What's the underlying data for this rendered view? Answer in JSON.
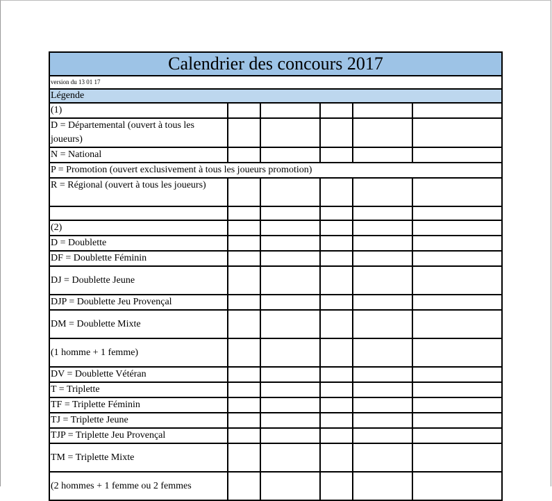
{
  "title": "Calendrier des concours 2017",
  "version": "version du 13 01 17",
  "legend_header": "Légende",
  "rows": [
    {
      "text": "(1)",
      "tall": false,
      "span": false
    },
    {
      "text": "D = Départemental (ouvert à tous les joueurs)",
      "tall": true,
      "span": false
    },
    {
      "text": "N = National",
      "tall": false,
      "span": false
    },
    {
      "text": "P = Promotion (ouvert exclusivement à tous les joueurs promotion)",
      "tall": false,
      "span": true
    },
    {
      "text": "R = Régional (ouvert à tous les joueurs)",
      "tall": true,
      "span": false
    },
    {
      "text": "",
      "tall": false,
      "span": false
    },
    {
      "text": "(2)",
      "tall": false,
      "span": false
    },
    {
      "text": "D = Doublette",
      "tall": false,
      "span": false
    },
    {
      "text": "DF = Doublette Féminin",
      "tall": false,
      "span": false
    },
    {
      "text": "DJ = Doublette Jeune",
      "tall": true,
      "span": false,
      "middle": true
    },
    {
      "text": "DJP = Doublette Jeu Provençal",
      "tall": false,
      "span": false
    },
    {
      "text": "DM = Doublette Mixte",
      "tall": true,
      "span": false,
      "middle": true
    },
    {
      "text": "(1 homme + 1 femme)",
      "tall": true,
      "span": false,
      "middle": true
    },
    {
      "text": "DV = Doublette Vétéran",
      "tall": false,
      "span": false
    },
    {
      "text": "T = Triplette",
      "tall": false,
      "span": false
    },
    {
      "text": "TF = Triplette Féminin",
      "tall": false,
      "span": false
    },
    {
      "text": "TJ = Triplette Jeune",
      "tall": false,
      "span": false
    },
    {
      "text": "TJP = Triplette Jeu Provençal",
      "tall": false,
      "span": false
    },
    {
      "text": "TM = Triplette Mixte",
      "tall": true,
      "span": false,
      "middle": true
    },
    {
      "text": "(2 hommes + 1 femme ou 2 femmes",
      "tall": true,
      "span": false,
      "middle": true
    }
  ],
  "colors": {
    "title_bg": "#9dc3e6",
    "legend_bg": "#bdd7ee"
  }
}
